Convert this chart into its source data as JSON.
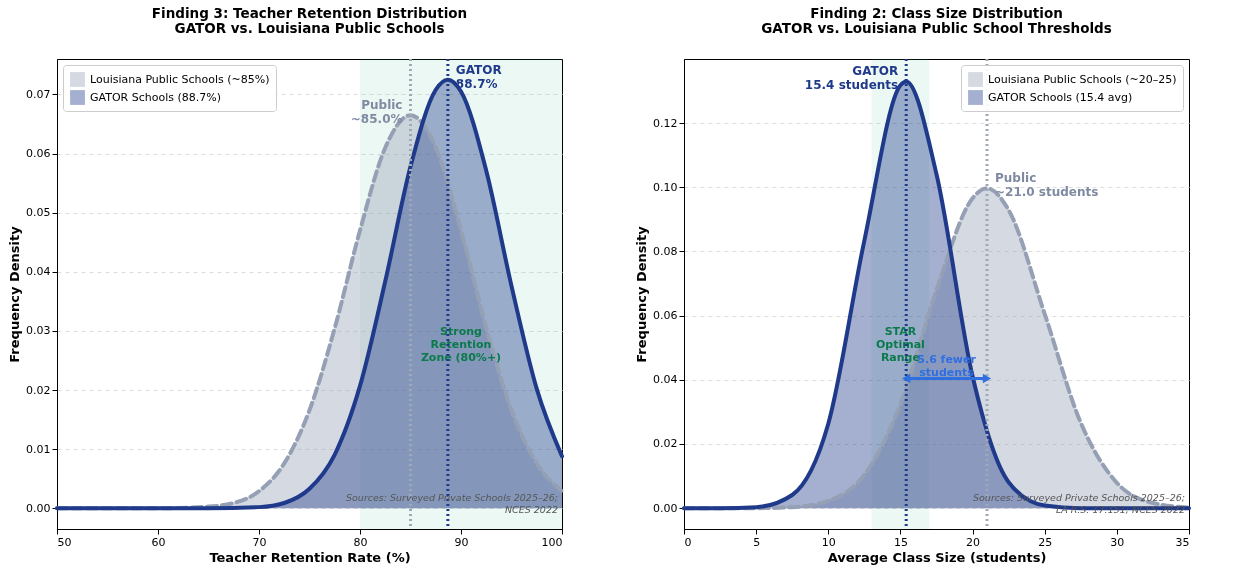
{
  "chart_data": [
    {
      "type": "area",
      "title": "Finding 3: Teacher Retention Distribution\nGATOR vs. Louisiana Public Schools",
      "xlabel": "Teacher Retention Rate (%)",
      "ylabel": "Frequency Density",
      "xlim": [
        50,
        100
      ],
      "xticks": [
        50,
        60,
        70,
        80,
        90,
        100
      ],
      "ylim": [
        -0.0035,
        0.076
      ],
      "yticks": [
        {
          "value": 0,
          "label": "0.00"
        },
        {
          "value": 0.01,
          "label": "0.01"
        },
        {
          "value": 0.02,
          "label": "0.02"
        },
        {
          "value": 0.03,
          "label": "0.03"
        },
        {
          "value": 0.04,
          "label": "0.04"
        },
        {
          "value": 0.05,
          "label": "0.05"
        },
        {
          "value": 0.06,
          "label": "0.06"
        },
        {
          "value": 0.07,
          "label": "0.07"
        }
      ],
      "grid": "y",
      "legend": "top left",
      "series": [
        {
          "name": "Louisiana Public Schools (~85%)",
          "color": "#96a0b5",
          "line_style": "dashed",
          "x": [
            50,
            55,
            60,
            65,
            67.5,
            70,
            72.5,
            75,
            77.5,
            80,
            82.5,
            85,
            87.5,
            90,
            92.5,
            95,
            97.5,
            100
          ],
          "values": [
            0,
            0,
            0,
            0.0003,
            0.0009,
            0.0029,
            0.0076,
            0.0166,
            0.0305,
            0.047,
            0.061,
            0.0665,
            0.061,
            0.047,
            0.0305,
            0.0166,
            0.0076,
            0.0029
          ]
        },
        {
          "name": "GATOR Schools (88.7%)",
          "color": "#1f3a8a",
          "line_style": "solid",
          "x": [
            50,
            60,
            65,
            70,
            72.5,
            75,
            77.5,
            80,
            82.5,
            85,
            87.5,
            88.7,
            90,
            92.5,
            95,
            97.5,
            100
          ],
          "values": [
            0,
            0,
            0,
            0.0002,
            0.0009,
            0.0033,
            0.0091,
            0.0207,
            0.0384,
            0.0578,
            0.0708,
            0.0725,
            0.0705,
            0.0571,
            0.0376,
            0.0202,
            0.0088
          ]
        }
      ],
      "bands": [
        {
          "axis": "x",
          "from": 80,
          "to": 100,
          "label": "Strong\nRetention\nZone (80%+)",
          "color": "#2fb67a"
        }
      ],
      "ref_lines": [
        {
          "axis": "x",
          "value": 85,
          "label": "Public\n~85.0%",
          "color": "#a0a8b8",
          "line_style": "dotted"
        },
        {
          "axis": "x",
          "value": 88.7,
          "label": "GATOR\n88.7%",
          "color": "#1f3a8a",
          "line_style": "dotted"
        }
      ],
      "annotations": [
        "Sources: Surveyed Private Schools 2025–26;\nNCES 2022"
      ]
    },
    {
      "type": "area",
      "title": "Finding 2: Class Size Distribution\nGATOR vs. Louisiana Public School Thresholds",
      "xlabel": "Average Class Size (students)",
      "ylabel": "Frequency Density",
      "xlim": [
        0,
        35
      ],
      "xticks": [
        0,
        5,
        10,
        15,
        20,
        25,
        30,
        35
      ],
      "ylim": [
        -0.0065,
        0.14
      ],
      "yticks": [
        {
          "value": 0,
          "label": "0.00"
        },
        {
          "value": 0.02,
          "label": "0.02"
        },
        {
          "value": 0.04,
          "label": "0.04"
        },
        {
          "value": 0.06,
          "label": "0.06"
        },
        {
          "value": 0.08,
          "label": "0.08"
        },
        {
          "value": 0.1,
          "label": "0.10"
        },
        {
          "value": 0.12,
          "label": "0.12"
        }
      ],
      "grid": "y",
      "legend": "top right",
      "series": [
        {
          "name": "Louisiana Public Schools (~20–25)",
          "color": "#96a0b5",
          "line_style": "dashed",
          "x": [
            0,
            2.5,
            5,
            7.5,
            10,
            12.5,
            15,
            17.5,
            20,
            21,
            22.5,
            25,
            27.5,
            30,
            32.5,
            35
          ],
          "values": [
            0,
            0,
            0,
            0.0003,
            0.0023,
            0.0104,
            0.0324,
            0.068,
            0.0966,
            0.0997,
            0.0929,
            0.0605,
            0.0266,
            0.0079,
            0.0016,
            0.0002
          ]
        },
        {
          "name": "GATOR Schools (15.4 avg)",
          "color": "#1f3a8a",
          "line_style": "solid",
          "x": [
            0,
            2.5,
            5,
            7.5,
            10,
            12.5,
            15,
            15.4,
            17.5,
            20,
            22.5,
            25,
            27.5,
            30,
            35
          ],
          "values": [
            0,
            0,
            0.0003,
            0.0041,
            0.0263,
            0.0834,
            0.1318,
            0.133,
            0.1041,
            0.0411,
            0.0081,
            0.0008,
            0,
            0,
            0
          ]
        }
      ],
      "bands": [
        {
          "axis": "x",
          "from": 13,
          "to": 17,
          "label": "STAR\nOptimal\nRange",
          "color": "#2fb67a"
        }
      ],
      "ref_lines": [
        {
          "axis": "x",
          "value": 15.4,
          "label": "GATOR\n15.4 students",
          "color": "#1f3a8a",
          "line_style": "dotted"
        },
        {
          "axis": "x",
          "value": 21,
          "label": "Public\n~21.0 students",
          "color": "#a0a8b8",
          "line_style": "dotted"
        }
      ],
      "annotations": [
        "5.6 fewer\nstudents",
        "Sources: Surveyed Private Schools 2025–26;\nLA R.S. 17:151; NCES 2022"
      ]
    }
  ]
}
